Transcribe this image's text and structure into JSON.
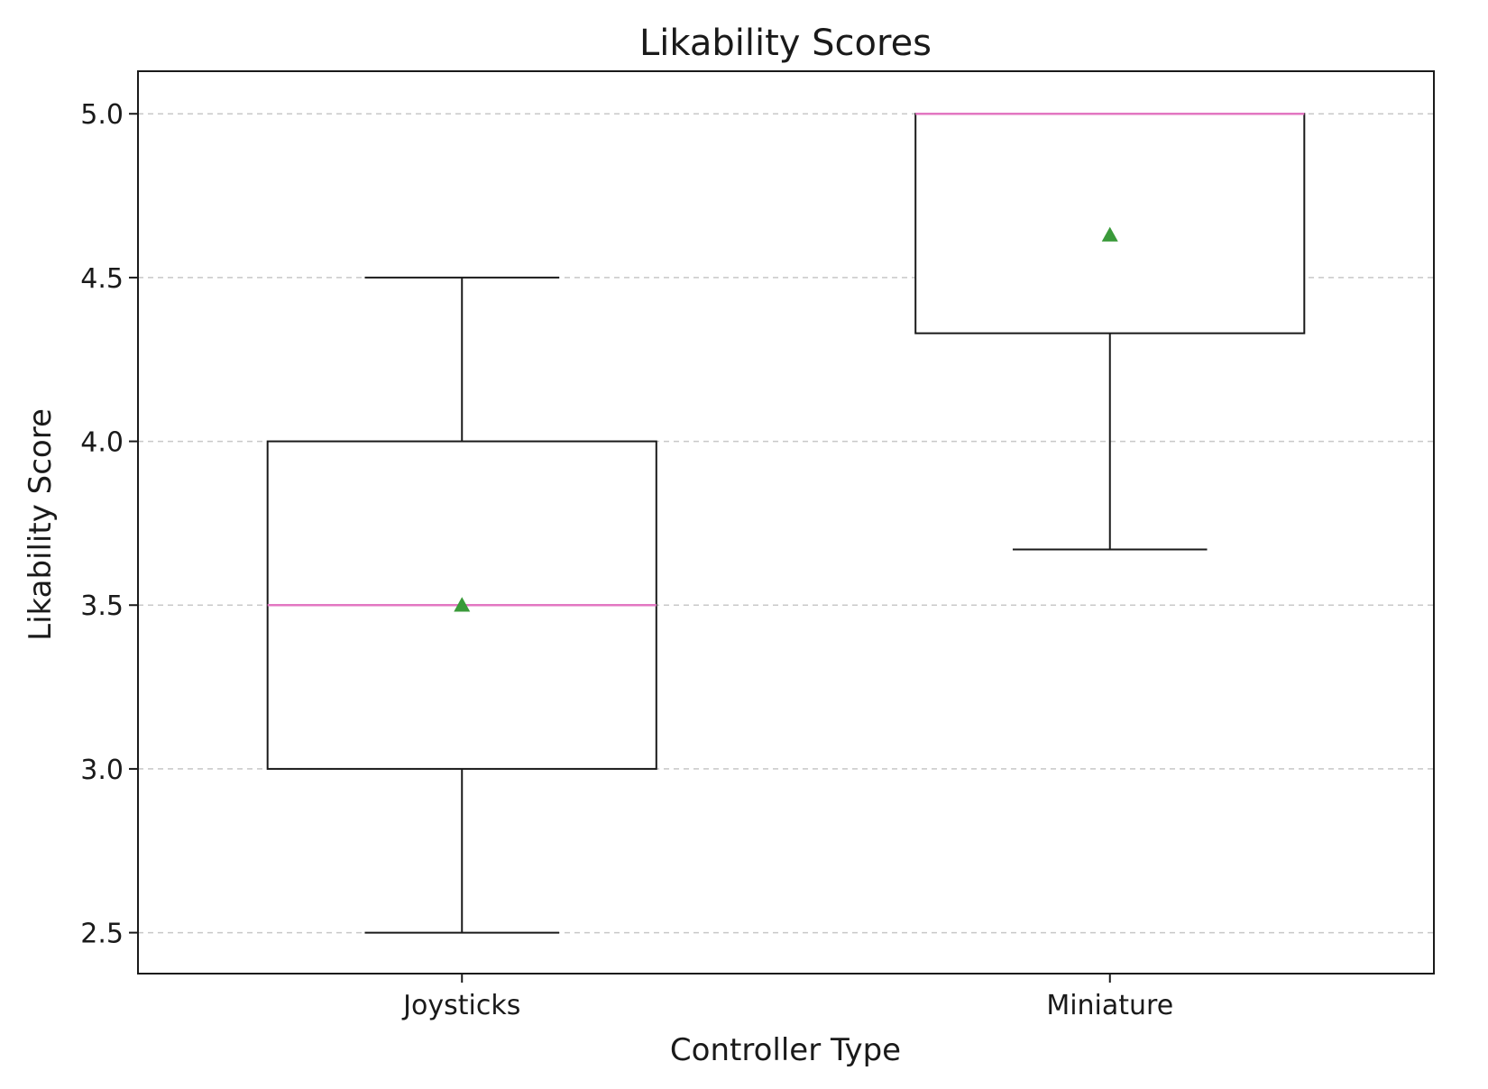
{
  "chart_data": {
    "type": "box",
    "title": "Likability Scores",
    "xlabel": "Controller Type",
    "ylabel": "Likability Score",
    "categories": [
      "Joysticks",
      "Miniature"
    ],
    "ylim": [
      2.375,
      5.13
    ],
    "yticks": [
      "2.5",
      "3.0",
      "3.5",
      "4.0",
      "4.5",
      "5.0"
    ],
    "grid": "y-dashed",
    "series": [
      {
        "category": "Joysticks",
        "whisker_low": 2.5,
        "q1": 3.0,
        "median": 3.5,
        "q3": 4.0,
        "whisker_high": 4.5,
        "mean": 3.5
      },
      {
        "category": "Miniature",
        "whisker_low": 3.67,
        "q1": 4.33,
        "median": 5.0,
        "q3": 5.0,
        "whisker_high": 5.0,
        "mean": 4.63
      }
    ],
    "colors": {
      "box": "#1a1a1a",
      "median": "#e377c2",
      "mean_marker": "#3a9a3a",
      "grid": "#c8c8c8"
    }
  }
}
